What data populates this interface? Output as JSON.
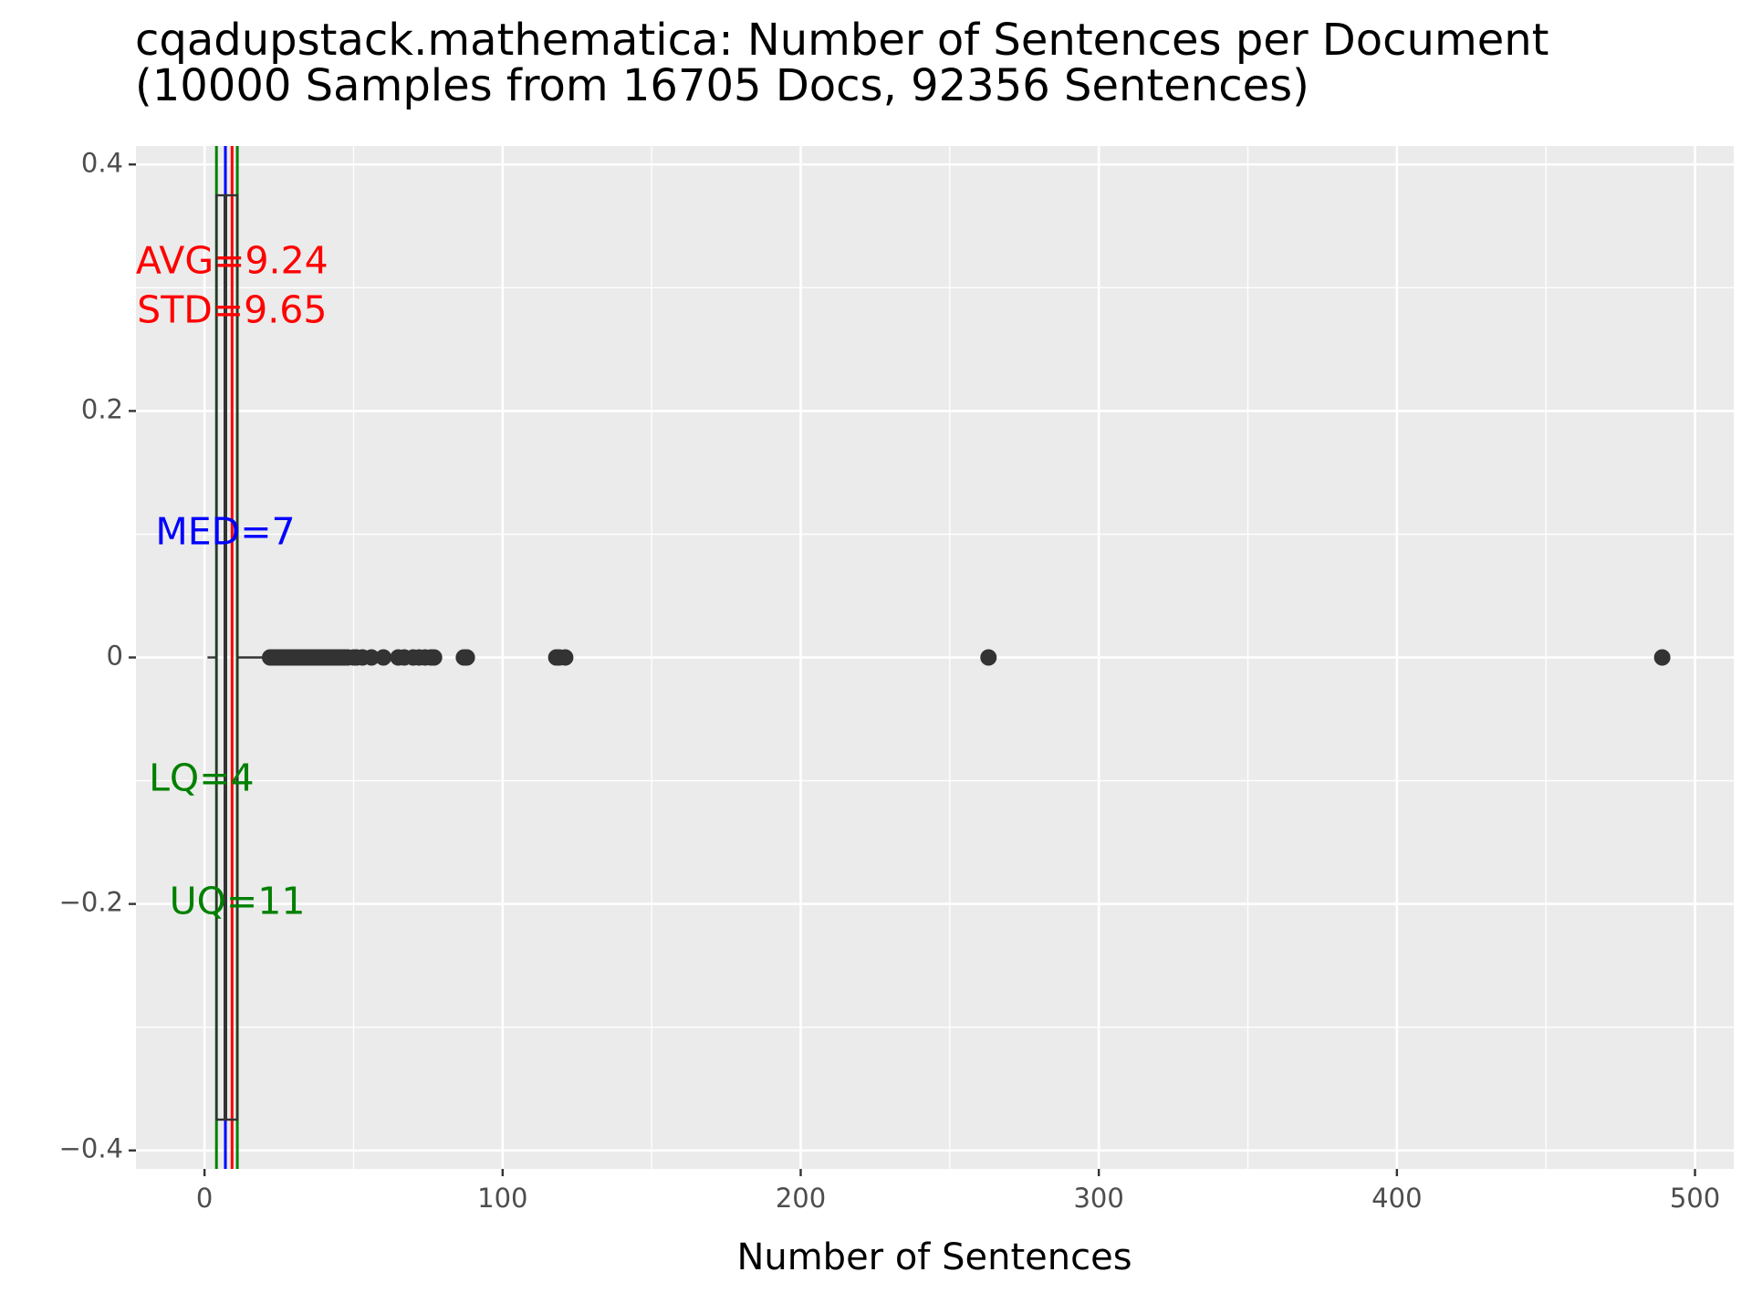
{
  "chart_data": {
    "type": "boxplot",
    "title": "cqadupstack.mathematica: Number of Sentences per Document",
    "subtitle": "(10000 Samples from 16705 Docs, 92356 Sentences)",
    "xlabel": "Number of Sentences",
    "ylabel": "",
    "xlim": [
      -23,
      513
    ],
    "ylim": [
      -0.415,
      0.415
    ],
    "x_ticks": [
      0,
      100,
      200,
      300,
      400,
      500
    ],
    "x_tick_labels": [
      "0",
      "100",
      "200",
      "300",
      "400",
      "500"
    ],
    "y_ticks": [
      0.4,
      0.2,
      0,
      -0.2,
      -0.4
    ],
    "y_tick_labels": [
      "0.4",
      "0.2",
      "0",
      "−0.2",
      "−0.4"
    ],
    "grid": true,
    "box": {
      "lower_whisker": 1,
      "lower_quartile": 4,
      "median": 7,
      "upper_quartile": 11,
      "upper_whisker": 21,
      "y_center": 0,
      "half_width": 0.375
    },
    "outliers": [
      22,
      23,
      24,
      25,
      26,
      27,
      28,
      29,
      30,
      31,
      32,
      33,
      34,
      35,
      36,
      37,
      38,
      39,
      40,
      41,
      42,
      43,
      44,
      45,
      46,
      47,
      48,
      50,
      51,
      53,
      56,
      60,
      65,
      67,
      70,
      72,
      74,
      76,
      77,
      87,
      88,
      118,
      119,
      121,
      263,
      489
    ],
    "reference_lines": [
      {
        "name": "LQ",
        "value": 4,
        "color": "#008000"
      },
      {
        "name": "MED",
        "value": 7,
        "color": "#0000ff"
      },
      {
        "name": "AVG",
        "value": 9.24,
        "color": "#ff0000"
      },
      {
        "name": "UQ",
        "value": 11,
        "color": "#008000"
      }
    ],
    "annotations": [
      {
        "text": "AVG=9.24",
        "x": 9.24,
        "y": 0.32,
        "color": "#ff0000"
      },
      {
        "text": "STD=9.65",
        "x": 9.24,
        "y": 0.28,
        "color": "#ff0000"
      },
      {
        "text": "MED=7",
        "x": 7,
        "y": 0.1,
        "color": "#0000ff"
      },
      {
        "text": "LQ=4",
        "x": -1,
        "y": -0.1,
        "color": "#008000"
      },
      {
        "text": "UQ=11",
        "x": 11,
        "y": -0.2,
        "color": "#008000"
      }
    ],
    "colors": {
      "panel_background": "#ebebeb",
      "grid": "#ffffff",
      "points": "#333333"
    }
  }
}
